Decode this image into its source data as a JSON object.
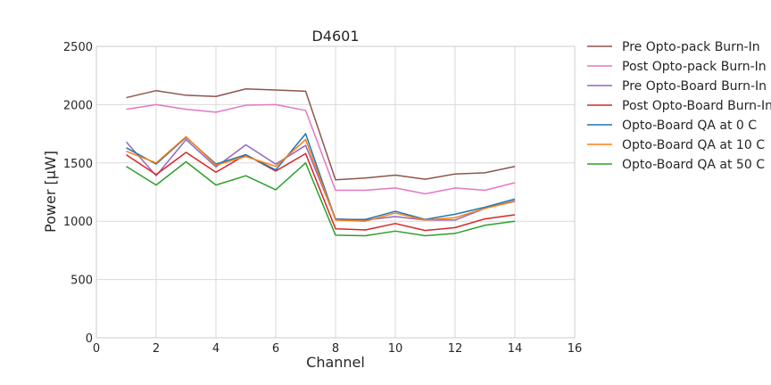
{
  "chart_data": {
    "type": "line",
    "title": "D4601",
    "xlabel": "Channel",
    "ylabel": "Power [μW]",
    "xlim": [
      0,
      16
    ],
    "ylim": [
      0,
      2500
    ],
    "x_ticks": [
      "0",
      "2",
      "4",
      "6",
      "8",
      "10",
      "12",
      "14",
      "16"
    ],
    "y_ticks": [
      "0",
      "500",
      "1000",
      "1500",
      "2000",
      "2500"
    ],
    "grid": true,
    "legend_position": "outside-right",
    "x": [
      1,
      2,
      3,
      4,
      5,
      6,
      7,
      8,
      9,
      10,
      11,
      12,
      13,
      14
    ],
    "series": [
      {
        "name": "Pre Opto-pack Burn-In",
        "color": "#8c564b",
        "values": [
          2060,
          2120,
          2080,
          2070,
          2135,
          2125,
          2115,
          1355,
          1370,
          1395,
          1360,
          1405,
          1415,
          1470
        ]
      },
      {
        "name": "Post Opto-pack Burn-In",
        "color": "#e377c2",
        "values": [
          1960,
          2000,
          1960,
          1935,
          1995,
          2000,
          1950,
          1265,
          1265,
          1285,
          1235,
          1285,
          1265,
          1330
        ]
      },
      {
        "name": "Pre Opto-Board Burn-In",
        "color": "#9467bd",
        "values": [
          1680,
          1390,
          1700,
          1465,
          1655,
          1490,
          1650,
          1020,
          1010,
          1040,
          1010,
          1010,
          1110,
          1175
        ]
      },
      {
        "name": "Post Opto-Board Burn-In",
        "color": "#d62728",
        "values": [
          1570,
          1400,
          1590,
          1420,
          1570,
          1430,
          1580,
          935,
          925,
          980,
          920,
          945,
          1020,
          1055
        ]
      },
      {
        "name": "Opto-Board QA at 0 C",
        "color": "#1f77b4",
        "values": [
          1630,
          1490,
          1720,
          1490,
          1570,
          1440,
          1750,
          1015,
          1015,
          1085,
          1015,
          1060,
          1120,
          1190
        ]
      },
      {
        "name": "Opto-Board QA at 10 C",
        "color": "#ff7f0e",
        "values": [
          1600,
          1500,
          1725,
          1480,
          1555,
          1470,
          1700,
          1010,
          1000,
          1070,
          1010,
          1030,
          1110,
          1170
        ]
      },
      {
        "name": "Opto-Board QA at 50 C",
        "color": "#2ca02c",
        "values": [
          1470,
          1310,
          1510,
          1310,
          1390,
          1270,
          1500,
          880,
          875,
          915,
          875,
          895,
          965,
          1000
        ]
      }
    ]
  }
}
